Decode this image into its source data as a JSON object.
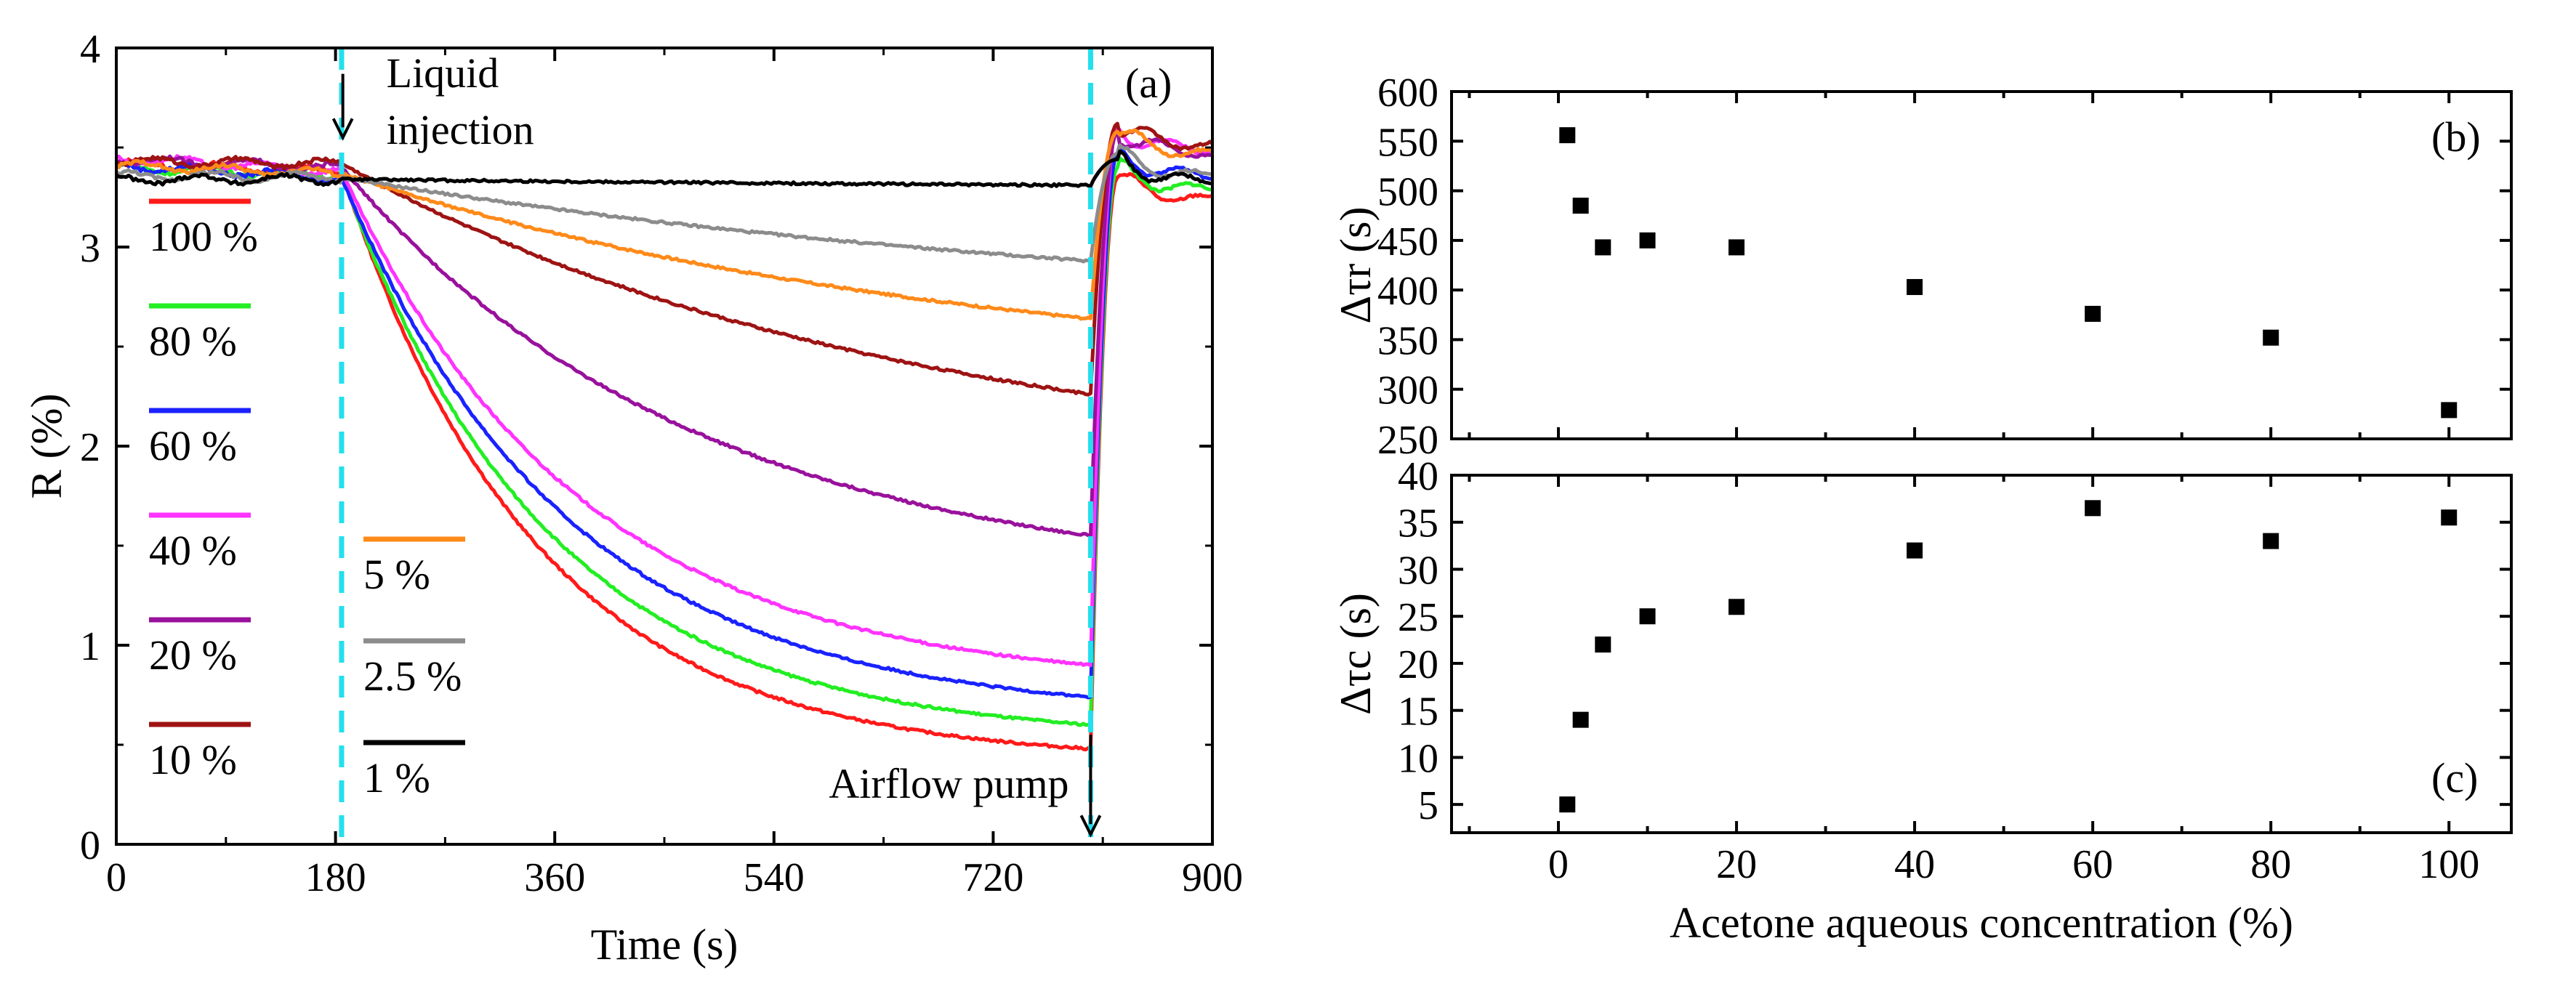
{
  "colors": {
    "frame": "#000000",
    "marker": "#000000",
    "guide": "#22e0ee",
    "series": {
      "100 %": "#ff1a1a",
      "80 %": "#22ee22",
      "60 %": "#1a22ff",
      "40 %": "#ff33ff",
      "20 %": "#99119c",
      "10 %": "#9e1313",
      "5 %": "#ff8a1a",
      "2.5 %": "#8c8c8c",
      "1 %": "#000000"
    }
  },
  "chart_data": [
    {
      "id": "a",
      "type": "line",
      "panel_label": "(a)",
      "xlabel": "Time (s)",
      "ylabel": "R (%)",
      "xlim": [
        0,
        900
      ],
      "ylim": [
        0,
        4
      ],
      "xticks": [
        0,
        180,
        360,
        540,
        720,
        900
      ],
      "yticks": [
        0,
        1,
        2,
        3,
        4
      ],
      "xtick_labels": [
        "0",
        "180",
        "360",
        "540",
        "720",
        "900"
      ],
      "ytick_labels": [
        "0",
        "1",
        "2",
        "3",
        "4"
      ],
      "guide_lines_x": [
        185,
        800
      ],
      "annotations": [
        {
          "key": "liquid_1",
          "text": "Liquid",
          "x": 186,
          "y": 3.87
        },
        {
          "key": "liquid_2",
          "text": "injection",
          "x": 186,
          "y": 3.61
        },
        {
          "key": "airflow",
          "text": "Airflow pump",
          "x": 800,
          "y": 0.27
        }
      ],
      "arrows": [
        {
          "x": 186,
          "y_from": 3.87,
          "y_to": 3.55
        },
        {
          "x": 800,
          "y_from": 0.55,
          "y_to": 0.05
        }
      ],
      "legend": {
        "columns": [
          [
            "100 %",
            "80 %",
            "60 %",
            "40 %",
            "20 %",
            "10 %"
          ],
          [
            "5 %",
            "2.5 %",
            "1 %"
          ]
        ]
      },
      "series": [
        {
          "name": "100 %",
          "baseline": 3.42,
          "at_injection": 3.38,
          "end_value": 0.48,
          "time_constant": 160,
          "recovery_peak": 3.35
        },
        {
          "name": "80 %",
          "baseline": 3.4,
          "at_injection": 3.36,
          "end_value": 0.6,
          "time_constant": 170,
          "recovery_peak": 3.4
        },
        {
          "name": "60 %",
          "baseline": 3.41,
          "at_injection": 3.35,
          "end_value": 0.74,
          "time_constant": 185,
          "recovery_peak": 3.47
        },
        {
          "name": "40 %",
          "baseline": 3.45,
          "at_injection": 3.38,
          "end_value": 0.9,
          "time_constant": 195,
          "recovery_peak": 3.6
        },
        {
          "name": "20 %",
          "baseline": 3.44,
          "at_injection": 3.4,
          "end_value": 1.55,
          "time_constant": 290,
          "recovery_peak": 3.58
        },
        {
          "name": "10 %",
          "baseline": 3.43,
          "at_injection": 3.42,
          "end_value": 2.26,
          "time_constant": 460,
          "recovery_peak": 3.62
        },
        {
          "name": "5 %",
          "baseline": 3.41,
          "at_injection": 3.37,
          "end_value": 2.64,
          "time_constant": 520,
          "recovery_peak": 3.58
        },
        {
          "name": "2.5 %",
          "baseline": 3.36,
          "at_injection": 3.35,
          "end_value": 2.93,
          "time_constant": 700,
          "recovery_peak": 3.47
        },
        {
          "name": "1 %",
          "baseline": 3.34,
          "at_injection": 3.34,
          "end_value": 3.31,
          "time_constant": 1200,
          "recovery_peak": 3.44
        }
      ]
    },
    {
      "id": "b",
      "type": "scatter",
      "panel_label": "(b)",
      "ylabel": "Δτr (s)",
      "xlim": [
        -12,
        107
      ],
      "ylim": [
        250,
        600
      ],
      "yticks": [
        250,
        300,
        350,
        400,
        450,
        500,
        550,
        600
      ],
      "ytick_labels": [
        "250",
        "300",
        "350",
        "400",
        "450",
        "500",
        "550",
        "600"
      ],
      "x": [
        1,
        2.5,
        5,
        10,
        20,
        40,
        60,
        80,
        100
      ],
      "y": [
        556,
        485,
        443,
        450,
        443,
        403,
        376,
        352,
        279
      ]
    },
    {
      "id": "c",
      "type": "scatter",
      "panel_label": "(c)",
      "xlabel": "Acetone aqueous concentration (%)",
      "ylabel": "Δτc (s)",
      "xlim": [
        -12,
        107
      ],
      "ylim": [
        2,
        40
      ],
      "xticks": [
        0,
        20,
        40,
        60,
        80,
        100
      ],
      "xtick_labels": [
        "0",
        "20",
        "40",
        "60",
        "80",
        "100"
      ],
      "yticks": [
        5,
        10,
        15,
        20,
        25,
        30,
        35,
        40
      ],
      "ytick_labels": [
        "5",
        "10",
        "15",
        "20",
        "25",
        "30",
        "35",
        "40"
      ],
      "x": [
        1,
        2.5,
        5,
        10,
        20,
        40,
        60,
        80,
        100
      ],
      "y": [
        5,
        14,
        22,
        25,
        26,
        32,
        36.5,
        33,
        35.5
      ]
    }
  ]
}
